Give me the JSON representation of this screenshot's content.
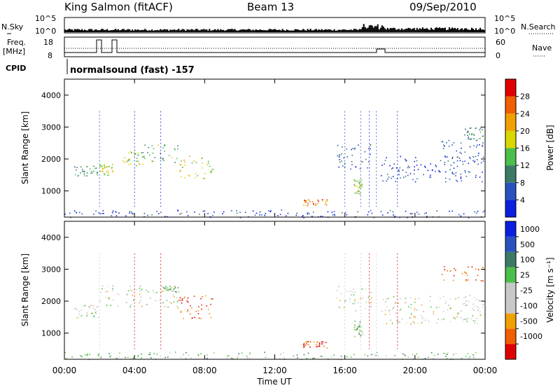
{
  "header": {
    "station": "King Salmon (fitACF)",
    "beam": "Beam 13",
    "date": "09/Sep/2010"
  },
  "aux": {
    "nsky_label": "N.Sky",
    "nsearch_label": "N.Search",
    "nsky_ticks": [
      "10^5",
      "10^0"
    ],
    "nsearch_ticks": [
      "10^5",
      "10^0"
    ],
    "freq_label_1": "Freq.",
    "freq_label_2": "[MHz]",
    "freq_ticks": [
      "18",
      "8"
    ],
    "nave_label": "Nave",
    "nave_ticks": [
      "60",
      "0"
    ],
    "cpid_label": "CPID",
    "cpid_text": "normalsound (fast) -157"
  },
  "colors": {
    "power": [
      "#0a1fe0",
      "#2a52bf",
      "#3d7a66",
      "#4bbf4b",
      "#d8d800",
      "#f0a000",
      "#f06000",
      "#e00000"
    ],
    "velocity": [
      "#e00000",
      "#f06000",
      "#f0a000",
      "#c8c8c8",
      "#c8c8c8",
      "#4bbf4b",
      "#3d7a66",
      "#2a52bf",
      "#0a1fe0"
    ]
  },
  "chart_data": [
    {
      "type": "heatmap",
      "name": "power-panel",
      "ylabel": "Slant Range [km]",
      "ylim": [
        180,
        4500
      ],
      "yticks": [
        1000,
        2000,
        3000,
        4000
      ],
      "xlim": [
        0,
        24
      ],
      "colorbar": {
        "label": "Power [dB]",
        "range": [
          0,
          32
        ],
        "ticks": [
          "4",
          "8",
          "12",
          "16",
          "20",
          "24",
          "28"
        ]
      },
      "regions": [
        {
          "t": [
            0.5,
            1.9
          ],
          "r": [
            1480,
            1800
          ],
          "v": 0.35
        },
        {
          "t": [
            2.0,
            2.8
          ],
          "r": [
            1500,
            1850
          ],
          "v": 0.55
        },
        {
          "t": [
            3.0,
            4.5
          ],
          "r": [
            1800,
            2250
          ],
          "v": 0.5
        },
        {
          "t": [
            4.5,
            6.5
          ],
          "r": [
            1900,
            2500
          ],
          "v": 0.4
        },
        {
          "t": [
            6.5,
            8.5
          ],
          "r": [
            1400,
            2150
          ],
          "v": 0.55
        },
        {
          "t": [
            13.6,
            15.0
          ],
          "r": [
            550,
            750
          ],
          "v": 0.75
        },
        {
          "t": [
            16.5,
            17.0
          ],
          "r": [
            900,
            1400
          ],
          "v": 0.5
        },
        {
          "t": [
            15.5,
            17.5
          ],
          "r": [
            1700,
            2500
          ],
          "v": 0.2
        },
        {
          "t": [
            18.0,
            23.9
          ],
          "r": [
            1300,
            2100
          ],
          "v": 0.15
        },
        {
          "t": [
            21.5,
            23.9
          ],
          "r": [
            2000,
            2600
          ],
          "v": 0.2
        },
        {
          "t": [
            22.8,
            23.9
          ],
          "r": [
            2600,
            3000
          ],
          "v": 0.3
        },
        {
          "t": [
            0.0,
            24.0
          ],
          "r": [
            180,
            420
          ],
          "v": 0.12
        }
      ]
    },
    {
      "type": "heatmap",
      "name": "velocity-panel",
      "ylabel": "Slant Range [km]",
      "xlabel": "Time UT",
      "ylim": [
        180,
        4500
      ],
      "yticks": [
        1000,
        2000,
        3000,
        4000
      ],
      "xlim": [
        0,
        24
      ],
      "xticks": [
        "00:00",
        "04:00",
        "08:00",
        "12:00",
        "16:00",
        "20:00",
        "00:00"
      ],
      "colorbar": {
        "label": "Velocity [m s⁻¹]",
        "ticks": [
          "1000",
          "500",
          "100",
          "25",
          "-25",
          "-100",
          "-500",
          "-1000"
        ]
      },
      "regions": [
        {
          "t": [
            0.5,
            1.9
          ],
          "r": [
            1480,
            1900
          ],
          "v": "gray"
        },
        {
          "t": [
            2.0,
            6.5
          ],
          "r": [
            1800,
            2500
          ],
          "v": "gray"
        },
        {
          "t": [
            6.5,
            8.5
          ],
          "r": [
            1400,
            2200
          ],
          "v": "orange"
        },
        {
          "t": [
            5.5,
            6.5
          ],
          "r": [
            2300,
            2500
          ],
          "v": "green"
        },
        {
          "t": [
            13.6,
            15.0
          ],
          "r": [
            550,
            750
          ],
          "v": "orange"
        },
        {
          "t": [
            16.5,
            17.0
          ],
          "r": [
            900,
            1400
          ],
          "v": "green"
        },
        {
          "t": [
            15.5,
            17.5
          ],
          "r": [
            1700,
            2500
          ],
          "v": "gray"
        },
        {
          "t": [
            18.0,
            23.9
          ],
          "r": [
            1300,
            2200
          ],
          "v": "gray"
        },
        {
          "t": [
            21.5,
            23.9
          ],
          "r": [
            2600,
            3100
          ],
          "v": "orange"
        },
        {
          "t": [
            0.0,
            24.0
          ],
          "r": [
            180,
            420
          ],
          "v": "green"
        }
      ]
    }
  ]
}
